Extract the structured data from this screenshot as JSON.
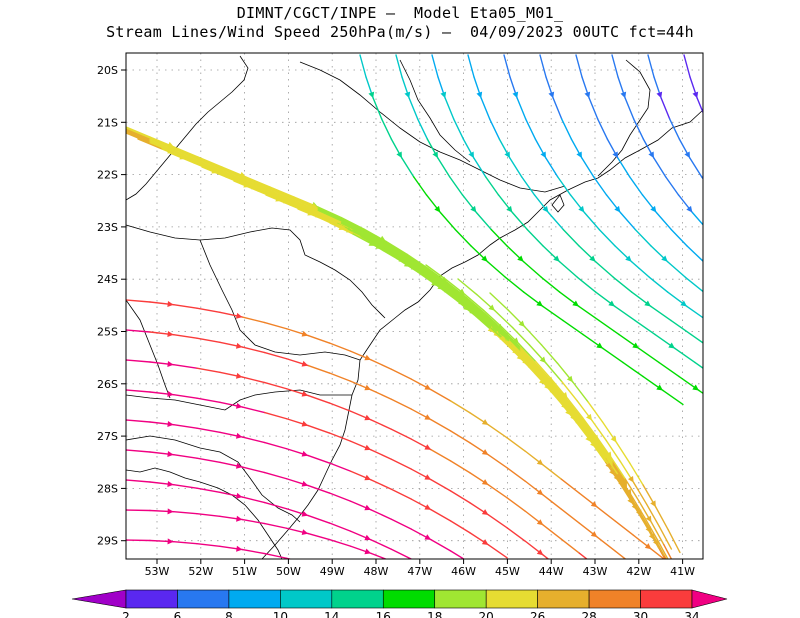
{
  "header": {
    "line1": "DIMNT/CGCT/INPE –  Model Eta05_M01_",
    "line2": "Stream Lines/Wind Speed 250hPa(m/s) –  04/09/2023 00UTC fct=44h"
  },
  "map": {
    "lat_ticks": [
      "20S",
      "21S",
      "22S",
      "23S",
      "24S",
      "25S",
      "26S",
      "27S",
      "28S",
      "29S"
    ],
    "lon_ticks": [
      "53W",
      "52W",
      "51W",
      "50W",
      "49W",
      "48W",
      "47W",
      "46W",
      "45W",
      "44W",
      "43W",
      "42W",
      "41W"
    ],
    "lat_range": [
      -29.6,
      -19.8
    ],
    "lon_range": [
      -53.6,
      -40.6
    ],
    "grid": "dotted",
    "coastline_color": "#000000"
  },
  "colorbar": {
    "labels": [
      "2",
      "6",
      "8",
      "10",
      "14",
      "16",
      "18",
      "20",
      "26",
      "28",
      "30",
      "34"
    ],
    "colors": [
      "#a000c8",
      "#5a28f0",
      "#2878f0",
      "#00aaf0",
      "#00c8c8",
      "#00d28c",
      "#00dc00",
      "#a0e632",
      "#e6dc32",
      "#e6af2d",
      "#f08228",
      "#fa3c3c",
      "#f00082"
    ]
  }
}
